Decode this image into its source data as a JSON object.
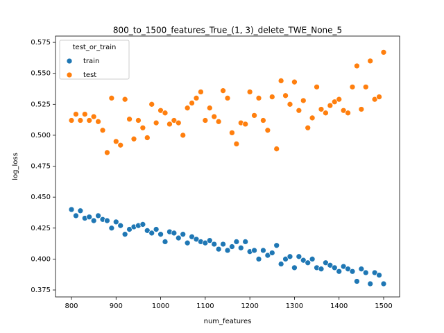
{
  "chart_data": {
    "type": "scatter",
    "title": "800_to_1500_features_True_(1, 3)_delete_TWE_None_5",
    "x_label": "num_features",
    "y_label": "log_loss",
    "legend_title": "test_or_train",
    "legend_loc": "upper left",
    "x": [
      800,
      810,
      820,
      830,
      840,
      850,
      860,
      870,
      880,
      890,
      900,
      910,
      920,
      930,
      940,
      950,
      960,
      970,
      980,
      990,
      1000,
      1010,
      1020,
      1030,
      1040,
      1050,
      1060,
      1070,
      1080,
      1090,
      1100,
      1110,
      1120,
      1130,
      1140,
      1150,
      1160,
      1170,
      1180,
      1190,
      1200,
      1210,
      1220,
      1230,
      1240,
      1250,
      1260,
      1270,
      1280,
      1290,
      1300,
      1310,
      1320,
      1330,
      1340,
      1350,
      1360,
      1370,
      1380,
      1390,
      1400,
      1410,
      1420,
      1430,
      1440,
      1450,
      1460,
      1470,
      1480,
      1490,
      1500
    ],
    "series": [
      {
        "name": "train",
        "color": "#1f77b4",
        "values": [
          0.44,
          0.435,
          0.439,
          0.433,
          0.434,
          0.431,
          0.435,
          0.432,
          0.431,
          0.425,
          0.43,
          0.427,
          0.42,
          0.424,
          0.426,
          0.427,
          0.428,
          0.423,
          0.421,
          0.424,
          0.42,
          0.414,
          0.422,
          0.421,
          0.417,
          0.42,
          0.413,
          0.418,
          0.416,
          0.414,
          0.413,
          0.415,
          0.412,
          0.408,
          0.412,
          0.407,
          0.41,
          0.414,
          0.409,
          0.414,
          0.406,
          0.407,
          0.4,
          0.407,
          0.403,
          0.405,
          0.411,
          0.396,
          0.4,
          0.402,
          0.393,
          0.402,
          0.399,
          0.397,
          0.4,
          0.393,
          0.392,
          0.397,
          0.395,
          0.393,
          0.39,
          0.394,
          0.392,
          0.39,
          0.382,
          0.392,
          0.389,
          0.38,
          0.389,
          0.387,
          0.38
        ]
      },
      {
        "name": "test",
        "color": "#ff7f0e",
        "values": [
          0.512,
          0.517,
          0.512,
          0.517,
          0.512,
          0.515,
          0.511,
          0.504,
          0.486,
          0.53,
          0.495,
          0.492,
          0.529,
          0.513,
          0.497,
          0.512,
          0.506,
          0.498,
          0.525,
          0.51,
          0.52,
          0.518,
          0.509,
          0.512,
          0.51,
          0.5,
          0.522,
          0.526,
          0.53,
          0.535,
          0.512,
          0.522,
          0.515,
          0.511,
          0.536,
          0.53,
          0.502,
          0.493,
          0.51,
          0.509,
          0.535,
          0.516,
          0.53,
          0.512,
          0.504,
          0.531,
          0.489,
          0.544,
          0.532,
          0.525,
          0.543,
          0.52,
          0.528,
          0.506,
          0.514,
          0.539,
          0.521,
          0.518,
          0.524,
          0.527,
          0.529,
          0.52,
          0.518,
          0.539,
          0.556,
          0.521,
          0.539,
          0.56,
          0.529,
          0.531,
          0.567
        ]
      }
    ],
    "xlim": [
      764.2,
      1535.8
    ],
    "ylim": [
      0.3694,
      0.5801
    ],
    "xticks": [
      800,
      900,
      1000,
      1100,
      1200,
      1300,
      1400,
      1500
    ],
    "yticks": [
      0.375,
      {
        "value": 0.4,
        "label": "0.400"
      },
      0.425,
      {
        "value": 0.45,
        "label": "0.450"
      },
      0.475,
      {
        "value": 0.5,
        "label": "0.500"
      },
      0.525,
      {
        "value": 0.55,
        "label": "0.550"
      },
      0.575
    ]
  }
}
